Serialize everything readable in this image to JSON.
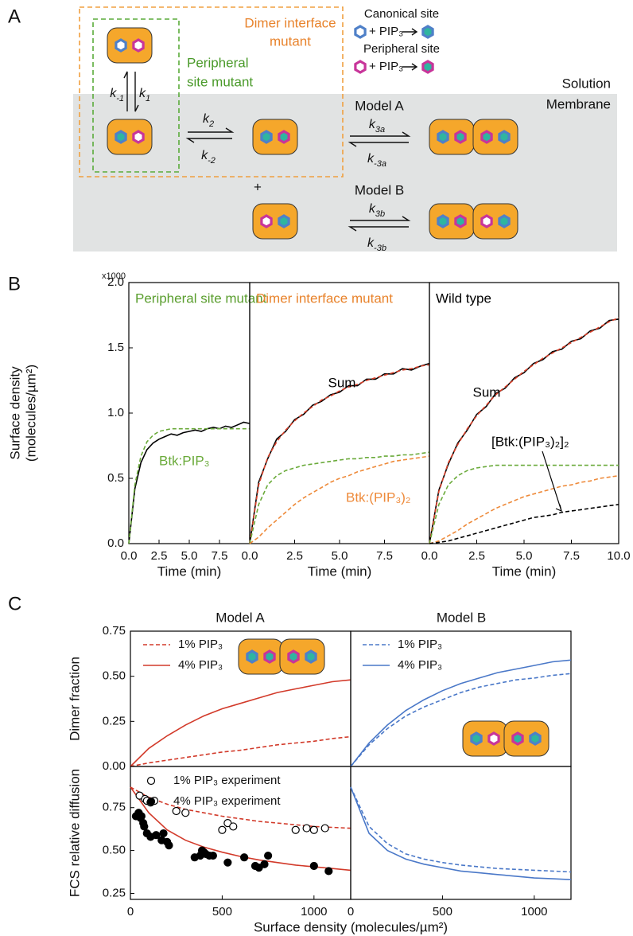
{
  "panel_labels": [
    "A",
    "B",
    "C"
  ],
  "diagram": {
    "dimer_interface_mutant": [
      "Dimer interface",
      "mutant"
    ],
    "peripheral_site_mutant": [
      "Peripheral",
      "site mutant"
    ],
    "legend": [
      {
        "label": "Canonical site",
        "reaction": "+ PIP₃"
      },
      {
        "label": "Peripheral site",
        "reaction": "+ PIP₃"
      }
    ],
    "solution": "Solution",
    "membrane": "Membrane",
    "models": [
      "Model A",
      "Model B"
    ],
    "plus": "+",
    "rates": [
      {
        "symbol": "k",
        "sub": "-1"
      },
      {
        "symbol": "k",
        "sub": "1"
      },
      {
        "symbol": "k",
        "sub": "2"
      },
      {
        "symbol": "k",
        "sub": "-2"
      },
      {
        "symbol": "k",
        "sub": "3a"
      },
      {
        "symbol": "k",
        "sub": "-3a"
      },
      {
        "symbol": "k",
        "sub": "3b"
      },
      {
        "symbol": "k",
        "sub": "-3b"
      }
    ]
  },
  "chart_data": [
    {
      "type": "line",
      "title": "Peripheral site mutant",
      "title_color": "#5a9e2e",
      "xlabel": "Time (min)",
      "ylabel": [
        "Surface density",
        "(molecules/µm²)"
      ],
      "y_multiplier": "x1000",
      "x": [
        0,
        0.5,
        1,
        1.5,
        2,
        2.5,
        3,
        3.5,
        4,
        4.5,
        5,
        5.5,
        6,
        6.5,
        7,
        7.5,
        8,
        8.5,
        9,
        9.5,
        10
      ],
      "xlim": [
        0,
        10
      ],
      "xticks": [
        {
          "value": 0,
          "label": "0.0"
        },
        2.5,
        {
          "value": 5,
          "label": "5.0"
        },
        7.5
      ],
      "ylim": [
        0,
        2
      ],
      "yticks": [
        {
          "value": 0,
          "label": "0.0"
        },
        0.5,
        {
          "value": 1,
          "label": "1.0"
        },
        1.5,
        {
          "value": 2,
          "label": "2.0"
        }
      ],
      "series": [
        {
          "color": "#000000",
          "dash": false,
          "values": [
            0,
            0.42,
            0.62,
            0.72,
            0.77,
            0.8,
            0.82,
            0.84,
            0.83,
            0.85,
            0.86,
            0.87,
            0.86,
            0.88,
            0.89,
            0.88,
            0.9,
            0.89,
            0.91,
            0.93,
            0.92
          ]
        },
        {
          "name": "Btk:PIP₃",
          "color": "#6aaa3a",
          "dash": true,
          "values": [
            0,
            0.45,
            0.67,
            0.78,
            0.83,
            0.86,
            0.87,
            0.88,
            0.88,
            0.88,
            0.88,
            0.88,
            0.88,
            0.88,
            0.88,
            0.88,
            0.88,
            0.88,
            0.88,
            0.88,
            0.88
          ]
        }
      ]
    },
    {
      "type": "line",
      "title": "Dimer interface mutant",
      "title_color": "#e8832c",
      "xlabel": "Time (min)",
      "x": [
        0,
        0.5,
        1,
        1.5,
        2,
        2.5,
        3,
        3.5,
        4,
        4.5,
        5,
        5.5,
        6,
        6.5,
        7,
        7.5,
        8,
        8.5,
        9,
        9.5,
        10
      ],
      "xlim": [
        0,
        10
      ],
      "xticks": [
        {
          "value": 0,
          "label": "0.0"
        },
        2.5,
        {
          "value": 5,
          "label": "5.0"
        },
        7.5
      ],
      "ylim": [
        0,
        2
      ],
      "series": [
        {
          "name": "Sum",
          "color": "#000000",
          "dash": false,
          "values": [
            0,
            0.47,
            0.65,
            0.8,
            0.86,
            0.95,
            0.99,
            1.06,
            1.09,
            1.14,
            1.16,
            1.21,
            1.21,
            1.26,
            1.26,
            1.3,
            1.3,
            1.34,
            1.33,
            1.36,
            1.38
          ]
        },
        {
          "color": "#d8402a",
          "dash": true,
          "values": [
            0,
            0.45,
            0.66,
            0.78,
            0.87,
            0.94,
            1.0,
            1.05,
            1.1,
            1.13,
            1.17,
            1.2,
            1.22,
            1.25,
            1.27,
            1.29,
            1.31,
            1.33,
            1.34,
            1.36,
            1.37
          ]
        },
        {
          "color": "#6aaa3a",
          "dash": true,
          "values": [
            0,
            0.3,
            0.45,
            0.52,
            0.56,
            0.58,
            0.6,
            0.61,
            0.62,
            0.63,
            0.64,
            0.65,
            0.65,
            0.66,
            0.66,
            0.67,
            0.67,
            0.68,
            0.68,
            0.69,
            0.7
          ]
        },
        {
          "name": "Btk:(PIP₃)₂",
          "color": "#ee8a3a",
          "dash": true,
          "values": [
            0,
            0.05,
            0.12,
            0.18,
            0.24,
            0.3,
            0.35,
            0.39,
            0.43,
            0.47,
            0.5,
            0.52,
            0.55,
            0.57,
            0.59,
            0.61,
            0.63,
            0.64,
            0.65,
            0.66,
            0.67
          ]
        }
      ]
    },
    {
      "type": "line",
      "title": "Wild type",
      "title_color": "#000000",
      "xlabel": "Time (min)",
      "x": [
        0,
        0.5,
        1,
        1.5,
        2,
        2.5,
        3,
        3.5,
        4,
        4.5,
        5,
        5.5,
        6,
        6.5,
        7,
        7.5,
        8,
        8.5,
        9,
        9.5,
        10
      ],
      "xlim": [
        0,
        10
      ],
      "xticks": [
        {
          "value": 0,
          "label": "0.0"
        },
        2.5,
        {
          "value": 5,
          "label": "5.0"
        },
        7.5,
        {
          "value": 10,
          "label": "10.0"
        }
      ],
      "ylim": [
        0,
        2
      ],
      "series": [
        {
          "name": "Sum",
          "color": "#000000",
          "dash": false,
          "values": [
            0,
            0.41,
            0.61,
            0.77,
            0.87,
            0.99,
            1.05,
            1.15,
            1.19,
            1.27,
            1.31,
            1.38,
            1.41,
            1.47,
            1.49,
            1.55,
            1.57,
            1.63,
            1.65,
            1.71,
            1.72
          ]
        },
        {
          "color": "#d8402a",
          "dash": true,
          "values": [
            0,
            0.4,
            0.62,
            0.76,
            0.88,
            0.98,
            1.06,
            1.14,
            1.2,
            1.26,
            1.32,
            1.37,
            1.42,
            1.46,
            1.5,
            1.54,
            1.58,
            1.62,
            1.66,
            1.7,
            1.73
          ]
        },
        {
          "color": "#6aaa3a",
          "dash": true,
          "values": [
            0,
            0.3,
            0.45,
            0.52,
            0.56,
            0.58,
            0.59,
            0.6,
            0.6,
            0.6,
            0.6,
            0.6,
            0.6,
            0.6,
            0.6,
            0.6,
            0.6,
            0.6,
            0.6,
            0.6,
            0.6
          ]
        },
        {
          "color": "#ee8a3a",
          "dash": true,
          "values": [
            0,
            0.02,
            0.06,
            0.1,
            0.15,
            0.19,
            0.23,
            0.27,
            0.3,
            0.33,
            0.36,
            0.38,
            0.4,
            0.42,
            0.44,
            0.45,
            0.47,
            0.48,
            0.5,
            0.51,
            0.52
          ]
        },
        {
          "name": "[Btk:(PIP₃)₂]₂",
          "color": "#000000",
          "dash": true,
          "values": [
            0,
            0.01,
            0.02,
            0.04,
            0.06,
            0.08,
            0.1,
            0.12,
            0.14,
            0.16,
            0.18,
            0.2,
            0.21,
            0.22,
            0.24,
            0.25,
            0.26,
            0.27,
            0.28,
            0.29,
            0.3
          ]
        }
      ]
    },
    {
      "type": "line",
      "title": "Model A",
      "ylabel": "Dimer fraction",
      "legend": "upper left",
      "x": [
        0,
        100,
        200,
        300,
        400,
        500,
        600,
        700,
        800,
        900,
        1000,
        1100,
        1200
      ],
      "xlim": [
        0,
        1200
      ],
      "ylim": [
        0,
        0.75
      ],
      "yticks": [
        {
          "value": 0,
          "label": "0.00"
        },
        0.25,
        {
          "value": 0.5,
          "label": "0.50"
        },
        0.75
      ],
      "series": [
        {
          "name": "1% PIP₃",
          "color": "#d23a2a",
          "dash": true,
          "values": [
            0,
            0.02,
            0.035,
            0.05,
            0.065,
            0.08,
            0.09,
            0.105,
            0.12,
            0.13,
            0.14,
            0.155,
            0.165
          ]
        },
        {
          "name": "4% PIP₃",
          "color": "#d23a2a",
          "dash": false,
          "values": [
            0,
            0.1,
            0.17,
            0.23,
            0.28,
            0.32,
            0.35,
            0.38,
            0.41,
            0.43,
            0.45,
            0.47,
            0.48
          ]
        }
      ]
    },
    {
      "type": "line",
      "title": "Model B",
      "legend": "upper left",
      "x": [
        0,
        100,
        200,
        300,
        400,
        500,
        600,
        700,
        800,
        900,
        1000,
        1100,
        1200
      ],
      "xlim": [
        0,
        1200
      ],
      "ylim": [
        0,
        0.75
      ],
      "series": [
        {
          "name": "1% PIP₃",
          "color": "#4a78c8",
          "dash": true,
          "values": [
            0,
            0.12,
            0.21,
            0.28,
            0.33,
            0.37,
            0.41,
            0.44,
            0.46,
            0.48,
            0.49,
            0.505,
            0.515
          ]
        },
        {
          "name": "4% PIP₃",
          "color": "#4a78c8",
          "dash": false,
          "values": [
            0,
            0.13,
            0.23,
            0.31,
            0.37,
            0.42,
            0.46,
            0.49,
            0.52,
            0.54,
            0.56,
            0.58,
            0.59
          ]
        }
      ]
    },
    {
      "type": "line",
      "ylabel": "FCS relative diffusion",
      "xlabel": "Surface density (molecules/µm²)",
      "legend": "upper left",
      "x": [
        0,
        100,
        200,
        300,
        400,
        500,
        600,
        700,
        800,
        900,
        1000,
        1100,
        1200
      ],
      "xlim": [
        0,
        1200
      ],
      "xticks": [
        0,
        500,
        1000
      ],
      "ylim": [
        0.215,
        0.99
      ],
      "yticks": [
        0.25,
        {
          "value": 0.5,
          "label": "0.50"
        },
        0.75
      ],
      "series": [
        {
          "color": "#d23a2a",
          "dash": true,
          "values": [
            0.87,
            0.81,
            0.77,
            0.74,
            0.72,
            0.7,
            0.685,
            0.67,
            0.66,
            0.65,
            0.64,
            0.635,
            0.63
          ]
        },
        {
          "color": "#d23a2a",
          "dash": false,
          "values": [
            0.87,
            0.72,
            0.62,
            0.56,
            0.52,
            0.49,
            0.465,
            0.445,
            0.43,
            0.415,
            0.405,
            0.395,
            0.385
          ]
        },
        {
          "name": "1% PIP₃ experiment",
          "mode": "markers",
          "filled": false,
          "color": "#000000",
          "x": [
            50,
            80,
            90,
            110,
            130,
            250,
            300,
            500,
            530,
            560,
            900,
            960,
            1000,
            1060
          ],
          "values": [
            0.82,
            0.8,
            0.79,
            0.78,
            0.79,
            0.73,
            0.72,
            0.62,
            0.66,
            0.64,
            0.62,
            0.63,
            0.62,
            0.63
          ]
        },
        {
          "name": "4% PIP₃ experiment",
          "mode": "markers",
          "filled": true,
          "color": "#000000",
          "x": [
            30,
            45,
            55,
            60,
            70,
            75,
            90,
            110,
            140,
            170,
            180,
            200,
            210,
            350,
            380,
            390,
            400,
            410,
            430,
            450,
            530,
            620,
            680,
            700,
            730,
            750,
            1000,
            1080
          ],
          "values": [
            0.7,
            0.72,
            0.69,
            0.7,
            0.66,
            0.64,
            0.6,
            0.58,
            0.59,
            0.56,
            0.6,
            0.55,
            0.53,
            0.46,
            0.47,
            0.5,
            0.49,
            0.48,
            0.47,
            0.47,
            0.43,
            0.46,
            0.41,
            0.4,
            0.42,
            0.47,
            0.41,
            0.38
          ]
        }
      ]
    },
    {
      "type": "line",
      "x": [
        0,
        100,
        200,
        300,
        400,
        500,
        600,
        700,
        800,
        900,
        1000,
        1100,
        1200
      ],
      "xlim": [
        0,
        1200
      ],
      "xticks": [
        0,
        500,
        1000
      ],
      "ylim": [
        0.215,
        0.99
      ],
      "series": [
        {
          "color": "#4a78c8",
          "dash": true,
          "values": [
            0.87,
            0.64,
            0.54,
            0.48,
            0.45,
            0.43,
            0.415,
            0.405,
            0.395,
            0.39,
            0.385,
            0.38,
            0.375
          ]
        },
        {
          "color": "#4a78c8",
          "dash": false,
          "values": [
            0.87,
            0.6,
            0.5,
            0.45,
            0.42,
            0.4,
            0.38,
            0.37,
            0.36,
            0.35,
            0.34,
            0.335,
            0.33
          ]
        }
      ]
    }
  ]
}
